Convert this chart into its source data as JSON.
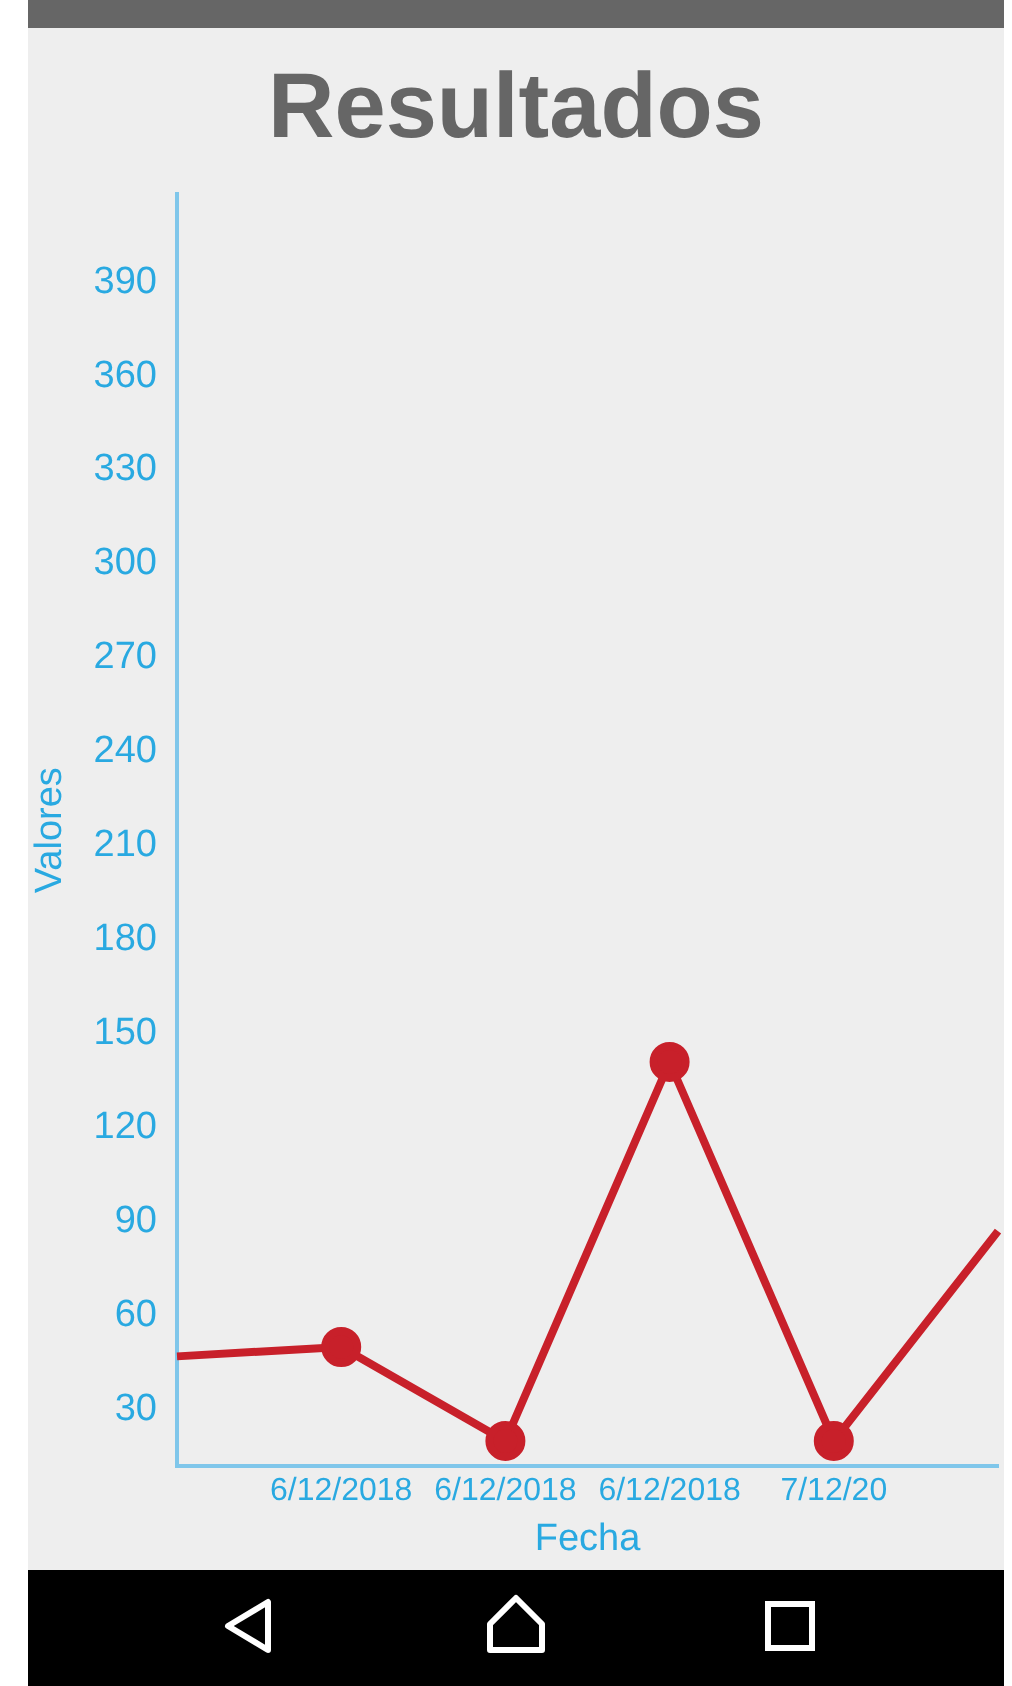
{
  "chart_data": {
    "type": "line",
    "title": "Resultados",
    "xlabel": "Fecha",
    "ylabel": "Valores",
    "categories": [
      null,
      "6/12/2018",
      "6/12/2018",
      "6/12/2018",
      "7/12/20",
      null
    ],
    "series": [
      {
        "color": "#c8202a",
        "values": [
          47,
          50,
          20,
          141,
          20,
          87
        ]
      }
    ],
    "ylim": [
      12,
      418
    ],
    "yticks": [
      30,
      60,
      90,
      120,
      150,
      180,
      210,
      240,
      270,
      300,
      330,
      360,
      390
    ],
    "grid": false,
    "legend": false,
    "marker": "circle",
    "line_style": "solid"
  }
}
